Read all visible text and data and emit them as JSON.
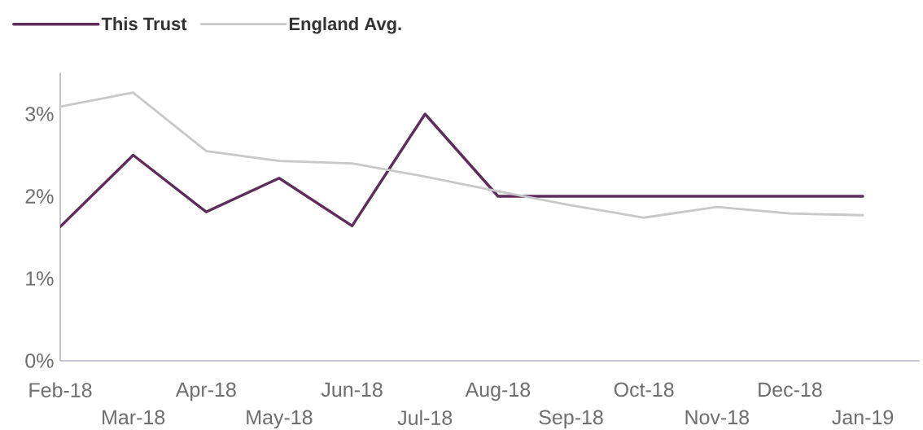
{
  "chart_data": {
    "type": "line",
    "categories": [
      "Feb-18",
      "Mar-18",
      "Apr-18",
      "May-18",
      "Jun-18",
      "Jul-18",
      "Aug-18",
      "Sep-18",
      "Oct-18",
      "Nov-18",
      "Dec-18",
      "Jan-19"
    ],
    "series": [
      {
        "name": "This Trust",
        "color": "#5e2d5b",
        "values": [
          1.63,
          2.5,
          1.81,
          2.22,
          1.64,
          3.0,
          2.0,
          2.0,
          2.0,
          2.0,
          2.0,
          2.0
        ]
      },
      {
        "name": "England Avg.",
        "color": "#c8c8c8",
        "values": [
          3.09,
          3.26,
          2.55,
          2.43,
          2.4,
          2.24,
          2.06,
          1.89,
          1.74,
          1.87,
          1.79,
          1.77
        ]
      }
    ],
    "ylim": [
      0,
      3.5
    ],
    "yticks": [
      {
        "value": 0,
        "label": "0%"
      },
      {
        "value": 1,
        "label": "1%"
      },
      {
        "value": 2,
        "label": "2%"
      },
      {
        "value": 3,
        "label": "3%"
      }
    ],
    "legend": "top left",
    "grid": false,
    "marker": "none",
    "line_style": "solid"
  }
}
